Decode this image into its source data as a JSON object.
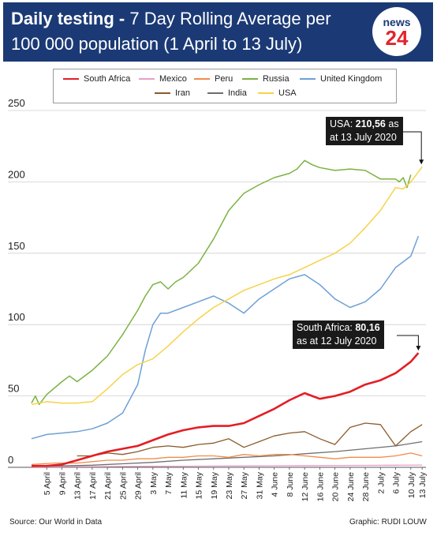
{
  "header": {
    "title_bold": "Daily testing -",
    "title_rest": " 7 Day Rolling Average per",
    "title_line2": "100 000 population (1 April to 13 July)",
    "logo_top": "news",
    "logo_bottom": "24"
  },
  "footer": {
    "source": "Source: Our World in Data",
    "credit": "Graphic: RUDI LOUW"
  },
  "annotations": {
    "usa_prefix": "USA: ",
    "usa_value": "210,56",
    "usa_suffix": " as",
    "usa_line2": "at 13 July 2020",
    "sa_prefix": "South Africa: ",
    "sa_value": "80,16",
    "sa_line2": "as at 12 July 2020"
  },
  "chart_data": {
    "type": "line",
    "title": "Daily testing - 7 Day Rolling Average per 100 000 population (1 April to 13 July)",
    "xlabel": "",
    "ylabel": "",
    "ylim": [
      0,
      250
    ],
    "yticks": [
      0,
      50,
      100,
      150,
      200,
      250
    ],
    "x_tick_labels": [
      "5 April",
      "9 April",
      "13 April",
      "17 April",
      "21 April",
      "25 April",
      "29 April",
      "3 May",
      "7 May",
      "11 May",
      "15 May",
      "19 May",
      "23 May",
      "27 May",
      "31 May",
      "4 June",
      "8 June",
      "12 June",
      "16 June",
      "20 June",
      "24 June",
      "28 June",
      "2 July",
      "6 July",
      "10 July",
      "13 July"
    ],
    "x_tick_days": [
      4,
      8,
      12,
      16,
      20,
      24,
      28,
      32,
      36,
      40,
      44,
      48,
      52,
      56,
      60,
      64,
      68,
      72,
      76,
      80,
      84,
      88,
      92,
      96,
      100,
      103
    ],
    "x_range_days": [
      0,
      104
    ],
    "grid": "horizontal",
    "legend_position": "top",
    "series": [
      {
        "name": "South Africa",
        "color": "#e31e24",
        "width": 2.6,
        "x": [
          0,
          4,
          8,
          12,
          16,
          20,
          24,
          28,
          32,
          36,
          40,
          44,
          48,
          52,
          56,
          60,
          64,
          68,
          72,
          74,
          76,
          80,
          84,
          88,
          92,
          96,
          100,
          102
        ],
        "y": [
          1,
          1,
          2,
          5,
          8,
          11,
          13,
          15,
          19,
          23,
          26,
          28,
          29,
          29,
          31,
          36,
          41,
          47,
          52,
          50,
          48,
          50,
          53,
          58,
          61,
          66,
          74,
          80.16
        ]
      },
      {
        "name": "Mexico",
        "color": "#e7a0c8",
        "width": 1.3,
        "x": [
          0,
          8,
          16,
          24,
          32,
          40,
          48,
          56,
          64,
          72,
          80,
          88,
          96,
          103
        ],
        "y": [
          0.3,
          0.4,
          0.5,
          0.6,
          0.7,
          0.8,
          0.9,
          1,
          1.1,
          1.2,
          1.3,
          1.4,
          1.5,
          1.6
        ]
      },
      {
        "name": "Peru",
        "color": "#f08c4a",
        "width": 1.3,
        "x": [
          0,
          6,
          12,
          16,
          20,
          24,
          28,
          32,
          36,
          40,
          44,
          48,
          52,
          56,
          60,
          64,
          68,
          72,
          76,
          80,
          84,
          88,
          92,
          96,
          100,
          103
        ],
        "y": [
          2,
          3,
          3,
          4,
          5,
          5,
          6,
          6,
          7,
          7,
          8,
          8,
          7,
          9,
          8,
          9,
          9,
          8,
          7,
          6,
          7,
          7,
          7,
          8,
          10,
          8
        ]
      },
      {
        "name": "Russia",
        "color": "#7bb241",
        "width": 1.5,
        "x": [
          0,
          1,
          2,
          4,
          8,
          10,
          12,
          16,
          20,
          24,
          28,
          30,
          32,
          34,
          36,
          38,
          40,
          44,
          48,
          52,
          56,
          60,
          64,
          68,
          70,
          72,
          74,
          76,
          80,
          84,
          88,
          92,
          96,
          97,
          98,
          99,
          100
        ],
        "y": [
          45,
          50,
          44,
          51,
          60,
          64,
          60,
          68,
          78,
          93,
          110,
          120,
          128,
          130,
          125,
          130,
          133,
          143,
          160,
          180,
          192,
          198,
          203,
          206,
          209,
          215,
          212,
          210,
          208,
          209,
          208,
          202,
          202,
          200,
          203,
          196,
          205
        ]
      },
      {
        "name": "United Kingdom",
        "color": "#6ea0d4",
        "width": 1.5,
        "x": [
          0,
          4,
          8,
          12,
          16,
          20,
          24,
          28,
          30,
          32,
          34,
          36,
          40,
          44,
          48,
          52,
          56,
          60,
          64,
          68,
          72,
          76,
          80,
          84,
          88,
          92,
          96,
          100,
          102
        ],
        "y": [
          20,
          23,
          24,
          25,
          27,
          31,
          38,
          58,
          82,
          100,
          108,
          108,
          112,
          116,
          120,
          115,
          108,
          118,
          125,
          132,
          135,
          128,
          118,
          112,
          116,
          125,
          140,
          148,
          162
        ]
      },
      {
        "name": "Iran",
        "color": "#8b5a2b",
        "width": 1.3,
        "x": [
          12,
          16,
          20,
          24,
          28,
          32,
          36,
          40,
          44,
          48,
          52,
          56,
          60,
          64,
          68,
          72,
          76,
          80,
          84,
          88,
          92,
          96,
          100,
          103
        ],
        "y": [
          8,
          8,
          10,
          9,
          11,
          14,
          15,
          14,
          16,
          17,
          20,
          14,
          18,
          22,
          24,
          25,
          20,
          16,
          28,
          31,
          30,
          15,
          25,
          30
        ]
      },
      {
        "name": "India",
        "color": "#6e6e6e",
        "width": 1.3,
        "x": [
          0,
          8,
          16,
          24,
          32,
          40,
          48,
          56,
          64,
          72,
          80,
          88,
          96,
          103
        ],
        "y": [
          0.5,
          1,
          1.5,
          2.5,
          3.5,
          5,
          6,
          7,
          8,
          9.5,
          11,
          13,
          15,
          18
        ]
      },
      {
        "name": "USA",
        "color": "#f6d34a",
        "width": 1.5,
        "x": [
          0,
          4,
          8,
          12,
          16,
          20,
          24,
          28,
          32,
          36,
          40,
          44,
          48,
          52,
          56,
          60,
          64,
          68,
          72,
          76,
          80,
          84,
          88,
          92,
          96,
          98,
          100,
          103
        ],
        "y": [
          44,
          46,
          45,
          45,
          46,
          55,
          65,
          72,
          76,
          85,
          95,
          104,
          112,
          118,
          124,
          128,
          132,
          135,
          140,
          145,
          150,
          157,
          168,
          180,
          196,
          195,
          200,
          210.56
        ]
      }
    ]
  }
}
